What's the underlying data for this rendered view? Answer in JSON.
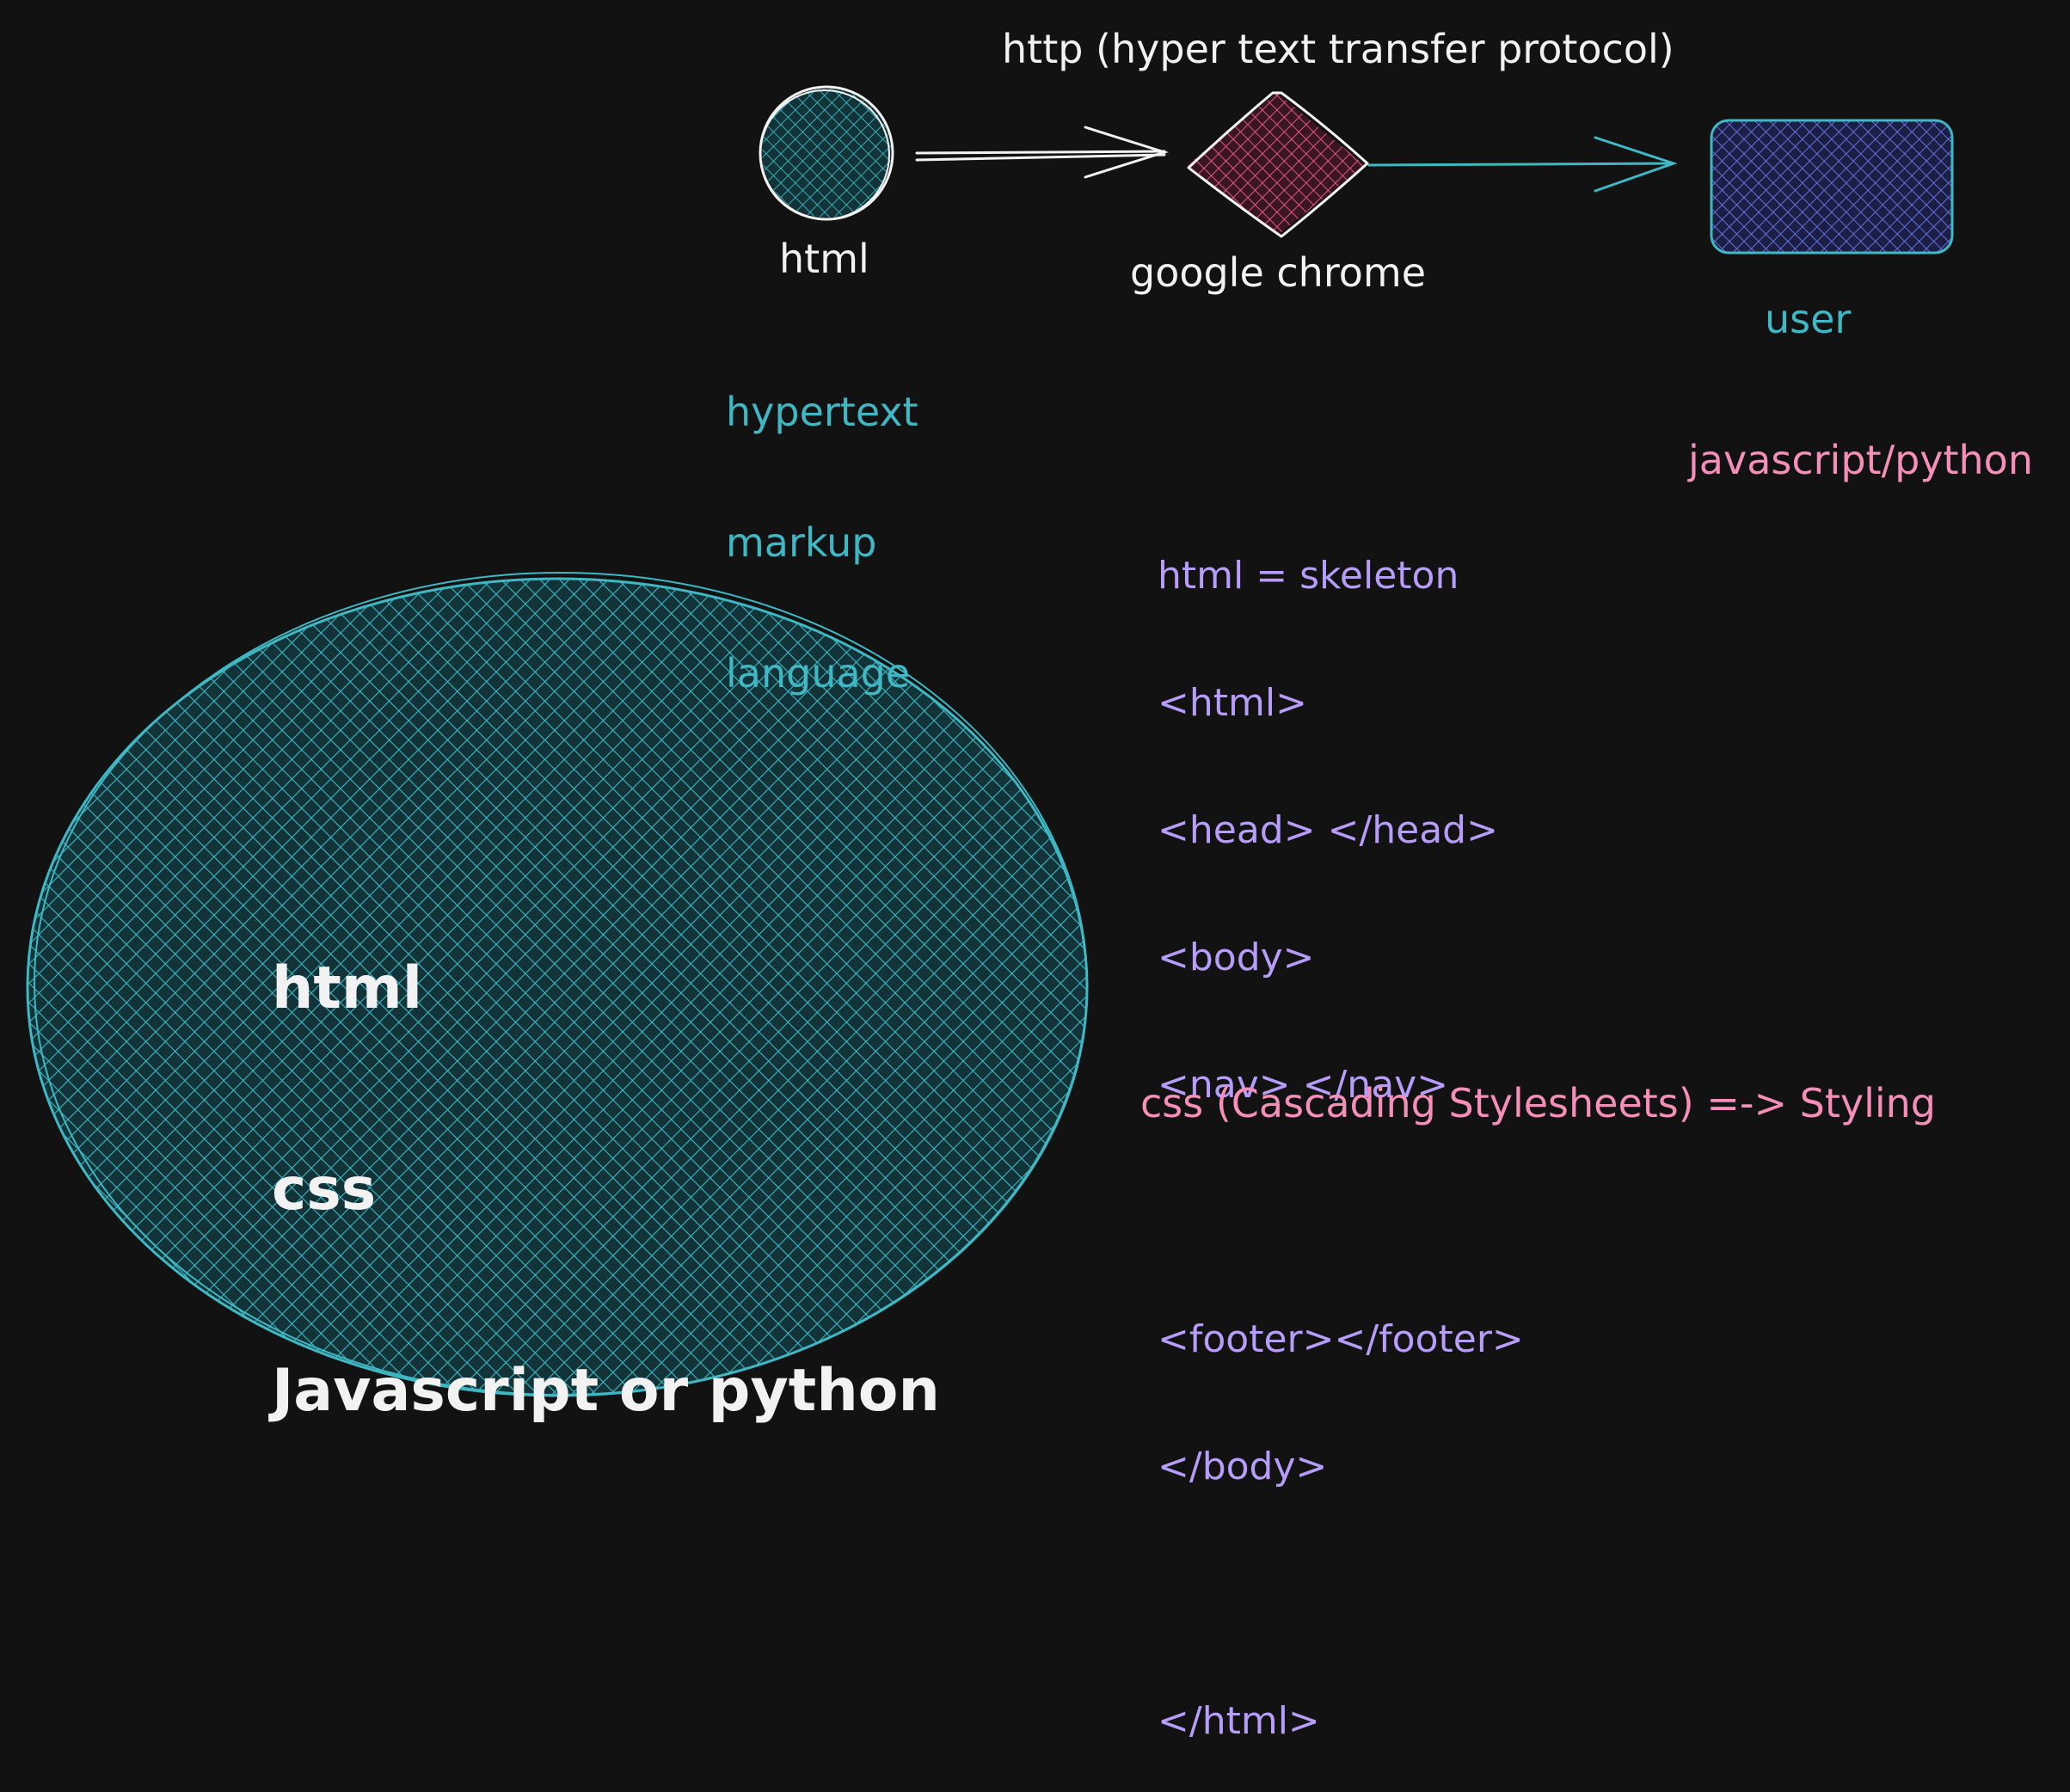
{
  "flow": {
    "protocol_label": "http (hyper text transfer protocol)",
    "nodes": [
      {
        "id": "html",
        "label": "html",
        "shape": "circle",
        "color": "#3fb8c4"
      },
      {
        "id": "browser",
        "label": "google chrome",
        "shape": "diamond",
        "color": "#f25d8a"
      },
      {
        "id": "user",
        "label": "user",
        "shape": "rectangle",
        "color": "#6f77e6"
      }
    ],
    "edges": [
      {
        "from": "html",
        "to": "browser",
        "color": "#f2f2f2"
      },
      {
        "from": "browser",
        "to": "user",
        "color": "#3fb8c4"
      }
    ]
  },
  "html_acronym": [
    "hypertext",
    "markup",
    "language"
  ],
  "backend_note": "javascript/python",
  "skeleton_notes": [
    "html = skeleton",
    "<html>",
    "<head> </head>",
    "<body>",
    "<nav> </nav>",
    "",
    "<footer></footer>",
    "</body>",
    "",
    "</html>"
  ],
  "css_note": "css (Cascading Stylesheets) =-> Styling",
  "stack_circle": {
    "color": "#3fb8c4",
    "items": [
      "html",
      "css",
      "Javascript or python"
    ]
  },
  "colors": {
    "background": "#121212",
    "white": "#f2f2f2",
    "teal": "#3fb8c4",
    "pink": "#f25d8a",
    "blue": "#6f77e6",
    "purple_text": "#b69dfa",
    "pink_text": "#f58fb8"
  }
}
